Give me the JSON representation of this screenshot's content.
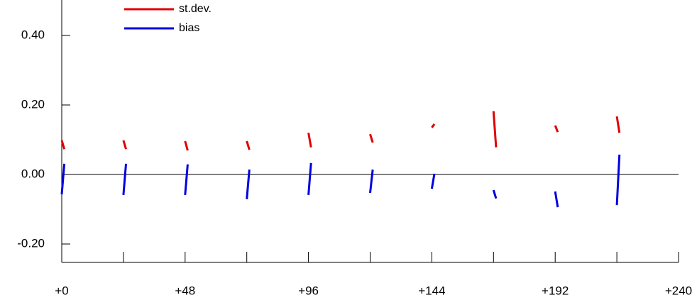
{
  "chart_data": {
    "type": "line",
    "x": [
      0,
      1,
      12,
      24,
      25,
      36,
      48,
      49,
      60,
      72,
      73,
      84,
      96,
      97,
      108,
      120,
      121,
      132,
      144,
      145,
      156,
      168,
      169,
      180,
      192,
      193,
      204,
      216,
      217
    ],
    "series": [
      {
        "name": "st.dev.",
        "color": "#e00000",
        "values": [
          0.098,
          0.073,
          null,
          0.098,
          0.073,
          null,
          0.096,
          0.069,
          null,
          0.096,
          0.071,
          null,
          0.12,
          0.078,
          null,
          0.116,
          0.092,
          null,
          0.135,
          0.145,
          null,
          0.182,
          0.078,
          null,
          0.141,
          0.122,
          null,
          0.167,
          0.12
        ]
      },
      {
        "name": "bias",
        "color": "#0000e0",
        "values": [
          -0.057,
          0.031,
          null,
          -0.059,
          0.031,
          null,
          -0.059,
          0.029,
          null,
          -0.071,
          0.014,
          null,
          -0.059,
          0.033,
          null,
          -0.053,
          0.014,
          null,
          -0.041,
          0.002,
          null,
          -0.045,
          -0.069,
          null,
          -0.049,
          -0.094,
          null,
          -0.088,
          0.057
        ]
      }
    ],
    "xlim": [
      0,
      240
    ],
    "xticks": [
      {
        "value": 0,
        "label": "+0"
      },
      {
        "value": 48,
        "label": "+48"
      },
      {
        "value": 96,
        "label": "+96"
      },
      {
        "value": 144,
        "label": "+144"
      },
      {
        "value": 192,
        "label": "+192"
      },
      {
        "value": 240,
        "label": "+240"
      }
    ],
    "xminorticks": [
      24,
      72,
      120,
      168,
      216
    ],
    "ylim": [
      -0.253,
      0.502
    ],
    "yticks": [
      {
        "value": -0.2,
        "label": "-0.20"
      },
      {
        "value": 0,
        "label": "0.00"
      },
      {
        "value": 0.2,
        "label": "0.20"
      },
      {
        "value": 0.4,
        "label": "0.40"
      }
    ],
    "reference_line": 0,
    "legend": "top-left"
  }
}
